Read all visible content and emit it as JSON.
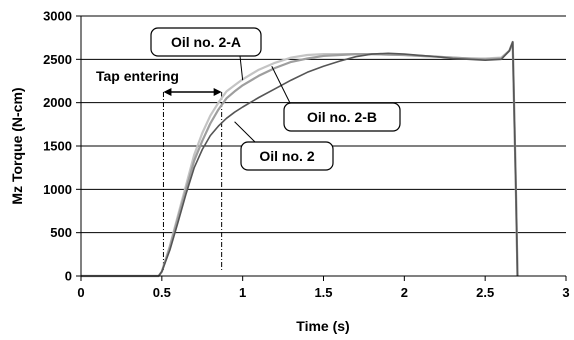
{
  "chart_data": {
    "type": "line",
    "title": "",
    "xlabel": "Time (s)",
    "ylabel": "Mz Torque (N-cm)",
    "xlim": [
      0,
      3
    ],
    "ylim": [
      0,
      3000
    ],
    "xticks": [
      0,
      0.5,
      1,
      1.5,
      2,
      2.5,
      3
    ],
    "xtick_labels": [
      "0",
      "0.5",
      "1",
      "1.5",
      "2",
      "2.5",
      "3"
    ],
    "yticks": [
      0,
      500,
      1000,
      1500,
      2000,
      2500,
      3000
    ],
    "ytick_labels": [
      "0",
      "500",
      "1000",
      "1500",
      "2000",
      "2500",
      "3000"
    ],
    "grid": "horizontal",
    "series": [
      {
        "name": "Oil no. 2-A",
        "color": "#c4c4c4",
        "x": [
          0,
          0.48,
          0.5,
          0.55,
          0.6,
          0.65,
          0.7,
          0.75,
          0.8,
          0.85,
          0.9,
          0.95,
          1.0,
          1.1,
          1.2,
          1.3,
          1.4,
          1.5,
          1.6,
          1.7,
          1.8,
          1.9,
          2.0,
          2.1,
          2.2,
          2.3,
          2.4,
          2.5,
          2.6,
          2.65,
          2.67,
          2.69,
          2.7
        ],
        "y": [
          0,
          0,
          50,
          350,
          700,
          1050,
          1400,
          1650,
          1850,
          2000,
          2130,
          2200,
          2270,
          2380,
          2460,
          2520,
          2550,
          2560,
          2560,
          2560,
          2560,
          2555,
          2550,
          2540,
          2530,
          2520,
          2510,
          2510,
          2520,
          2600,
          2700,
          1000,
          0
        ]
      },
      {
        "name": "Oil no. 2-B",
        "color": "#9e9e9e",
        "x": [
          0,
          0.48,
          0.5,
          0.55,
          0.6,
          0.65,
          0.7,
          0.75,
          0.8,
          0.85,
          0.9,
          0.95,
          1.0,
          1.1,
          1.2,
          1.3,
          1.4,
          1.5,
          1.6,
          1.7,
          1.8,
          1.9,
          2.0,
          2.1,
          2.2,
          2.3,
          2.4,
          2.5,
          2.6,
          2.65,
          2.67,
          2.69,
          2.7
        ],
        "y": [
          0,
          0,
          50,
          330,
          670,
          1000,
          1330,
          1560,
          1760,
          1920,
          2050,
          2130,
          2200,
          2310,
          2400,
          2470,
          2510,
          2540,
          2550,
          2560,
          2560,
          2555,
          2550,
          2540,
          2530,
          2520,
          2510,
          2500,
          2510,
          2600,
          2700,
          1000,
          0
        ]
      },
      {
        "name": "Oil no. 2",
        "color": "#555555",
        "x": [
          0,
          0.48,
          0.5,
          0.55,
          0.6,
          0.65,
          0.7,
          0.75,
          0.8,
          0.85,
          0.9,
          0.95,
          1.0,
          1.1,
          1.2,
          1.3,
          1.4,
          1.5,
          1.6,
          1.7,
          1.8,
          1.9,
          2.0,
          2.1,
          2.2,
          2.3,
          2.4,
          2.5,
          2.6,
          2.65,
          2.67,
          2.69,
          2.7
        ],
        "y": [
          0,
          0,
          50,
          300,
          620,
          950,
          1250,
          1460,
          1620,
          1730,
          1820,
          1890,
          1950,
          2060,
          2160,
          2260,
          2350,
          2420,
          2480,
          2530,
          2560,
          2570,
          2560,
          2545,
          2530,
          2510,
          2500,
          2490,
          2500,
          2600,
          2700,
          1000,
          0
        ]
      }
    ],
    "annotations": [
      {
        "id": "oil-2a",
        "text": "Oil no. 2-A",
        "target_x": 1.0,
        "target_y": 2260
      },
      {
        "id": "oil-2b",
        "text": "Oil no. 2-B",
        "target_x": 1.18,
        "target_y": 2420
      },
      {
        "id": "oil-2",
        "text": "Oil no. 2",
        "target_x": 0.95,
        "target_y": 1780
      },
      {
        "id": "tap-entering",
        "text": "Tap entering",
        "range_x": [
          0.51,
          0.87
        ],
        "arrow_y": 2100
      }
    ]
  }
}
